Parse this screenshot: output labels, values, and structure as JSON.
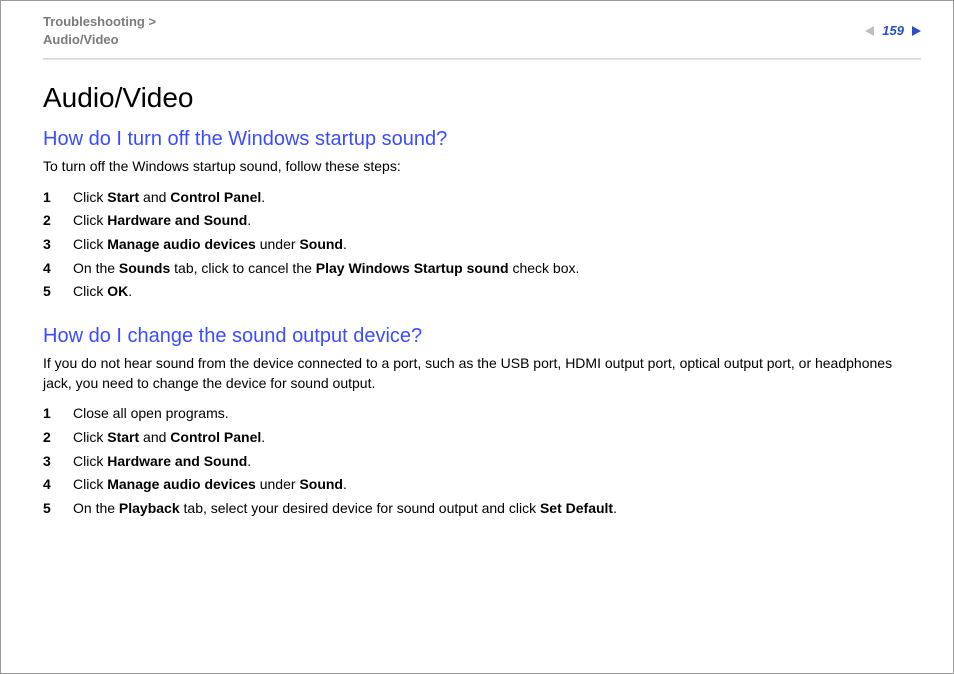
{
  "breadcrumb": {
    "category": "Troubleshooting",
    "page": "Audio/Video"
  },
  "page_number": "159",
  "title": "Audio/Video",
  "colors": {
    "breadcrumb_text": "#7b7b7b",
    "section_heading": "#3b4cff",
    "body_text": "#000000",
    "accent": "#2a4fc4",
    "arrow_inactive": "#bfbfbf",
    "divider": "#d0d0d0",
    "background": "#ffffff"
  },
  "typography": {
    "title_fontsize": 28,
    "section_fontsize": 20,
    "body_fontsize": 14,
    "breadcrumb_fontsize": 13,
    "font_family": "Arial"
  },
  "sections": [
    {
      "heading": "How do I turn off the Windows startup sound?",
      "intro": "To turn off the Windows startup sound, follow these steps:",
      "steps": [
        "Click <b>Start</b> and <b>Control Panel</b>.",
        "Click <b>Hardware and Sound</b>.",
        "Click <b>Manage audio devices</b> under <b>Sound</b>.",
        "On the <b>Sounds</b> tab, click to cancel the <b>Play Windows Startup sound</b> check box.",
        "Click <b>OK</b>."
      ]
    },
    {
      "heading": "How do I change the sound output device?",
      "intro": "If you do not hear sound from the device connected to a port, such as the USB port, HDMI output port, optical output port, or headphones jack, you need to change the device for sound output.",
      "steps": [
        "Close all open programs.",
        "Click <b>Start</b> and <b>Control Panel</b>.",
        "Click <b>Hardware and Sound</b>.",
        "Click <b>Manage audio devices</b> under <b>Sound</b>.",
        "On the <b>Playback</b> tab, select your desired device for sound output and click <b>Set Default</b>."
      ]
    }
  ]
}
